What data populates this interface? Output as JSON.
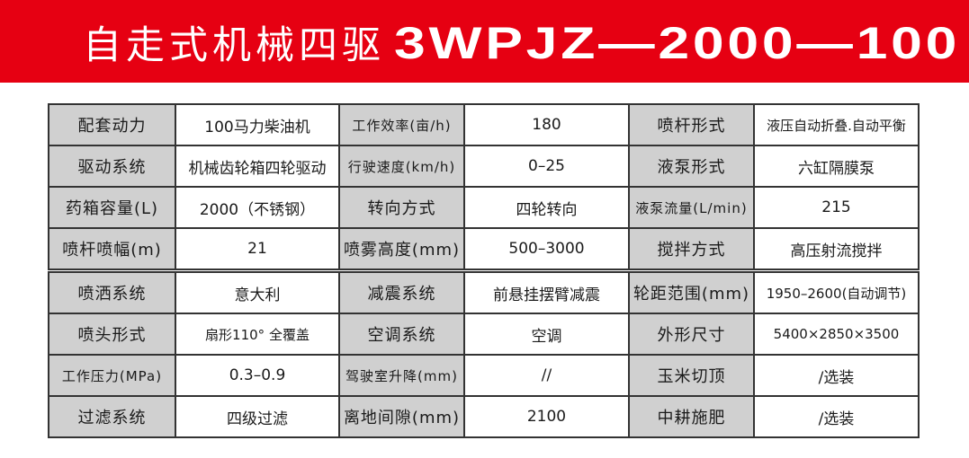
{
  "header": {
    "title_cn": "自走式机械四驱",
    "model": "3WPJZ—2000—100",
    "background_color": "#e60012"
  },
  "specs": [
    [
      {
        "label": "配套动力",
        "value": "100马力柴油机"
      },
      {
        "label": "工作效率(亩/h)",
        "value": "180"
      },
      {
        "label": "喷杆形式",
        "value": "液压自动折叠.自动平衡"
      }
    ],
    [
      {
        "label": "驱动系统",
        "value": "机械齿轮箱四轮驱动"
      },
      {
        "label": "行驶速度(km/h)",
        "value": "0–25"
      },
      {
        "label": "液泵形式",
        "value": "六缸隔膜泵"
      }
    ],
    [
      {
        "label": "药箱容量(L)",
        "value": "2000（不锈钢）"
      },
      {
        "label": "转向方式",
        "value": "四轮转向"
      },
      {
        "label": "液泵流量(L/min)",
        "value": "215"
      }
    ],
    [
      {
        "label": "喷杆喷幅(m)",
        "value": "21"
      },
      {
        "label": "喷雾高度(mm)",
        "value": "500–3000"
      },
      {
        "label": "搅拌方式",
        "value": "高压射流搅拌"
      }
    ],
    [
      {
        "label": "喷洒系统",
        "value": "意大利"
      },
      {
        "label": "减震系统",
        "value": "前悬挂摆臂减震"
      },
      {
        "label": "轮距范围(mm)",
        "value": "1950–2600(自动调节)"
      }
    ],
    [
      {
        "label": "喷头形式",
        "value": "扇形110° 全覆盖"
      },
      {
        "label": "空调系统",
        "value": "空调"
      },
      {
        "label": "外形尺寸",
        "value": "5400×2850×3500"
      }
    ],
    [
      {
        "label": "工作压力(MPa)",
        "value": "0.3–0.9"
      },
      {
        "label": "驾驶室升降(mm)",
        "value": "//"
      },
      {
        "label": "玉米切顶",
        "value": "/选装"
      }
    ],
    [
      {
        "label": "过滤系统",
        "value": "四级过滤"
      },
      {
        "label": "离地间隙(mm)",
        "value": "2100"
      },
      {
        "label": "中耕施肥",
        "value": "/选装"
      }
    ]
  ]
}
